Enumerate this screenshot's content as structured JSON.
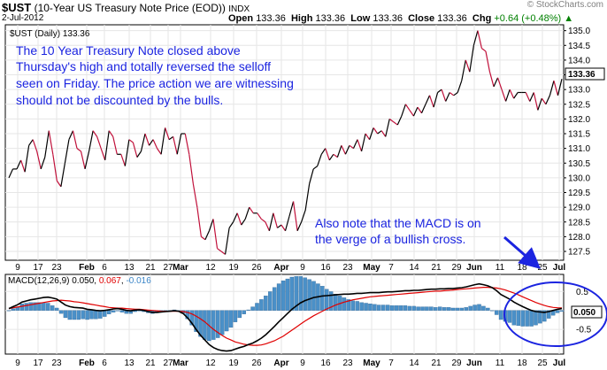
{
  "header": {
    "symbol": "$UST",
    "name": "(10-Year US Treasury Note Price (EOD))",
    "exchange": "INDX",
    "date": "2-Jul-2012",
    "open_label": "Open",
    "open": "133.36",
    "high_label": "High",
    "high": "133.36",
    "low_label": "Low",
    "low": "133.36",
    "close_label": "Close",
    "close": "133.36",
    "chg_label": "Chg",
    "chg": "+0.64 (+0.48%)",
    "chg_arrow": "up-arrow-icon",
    "watermark": "© StockCharts.com"
  },
  "price_panel": {
    "legend": "$UST (Daily) 133.36",
    "last_value": "133.36",
    "line_color_up": "#000000",
    "line_color_down": "#c0103a"
  },
  "macd_panel": {
    "legend_prefix": "MACD(12,26,9)",
    "macd_value": "0.050",
    "signal_value": "0.067",
    "hist_value": "-0.016",
    "last_value": "0.050",
    "macd_color": "#000000",
    "signal_color": "#e00000",
    "hist_color": "#4a90c8"
  },
  "annotations": {
    "main_lines": [
      "The 10 Year Treasury Note closed above",
      "Thursday's high and totally reversed the selloff",
      "seen on Friday. The price action we are witnessing",
      "should not be discounted by the bulls."
    ],
    "macd_lines": [
      "Also note that the MACD is on",
      "the verge of a bullish cross."
    ],
    "color": "#1b24e0",
    "arrow_icon": "arrow-down-right-icon",
    "circle_icon": "ellipse-highlight"
  },
  "chart_data": [
    {
      "type": "line",
      "title": "$UST (Daily) 133.36",
      "x_tick_labels": [
        "9",
        "17",
        "23",
        "Feb",
        "6",
        "13",
        "21",
        "27",
        "Mar",
        "12",
        "19",
        "26",
        "Apr",
        "9",
        "16",
        "23",
        "May",
        "7",
        "14",
        "21",
        "29",
        "Jun",
        "11",
        "18",
        "25",
        "Jul"
      ],
      "y_tick_labels": [
        "127.5",
        "128.0",
        "128.5",
        "129.0",
        "129.5",
        "130.0",
        "130.5",
        "131.0",
        "131.5",
        "132.0",
        "132.5",
        "133.0",
        "133.5",
        "134.0",
        "134.5",
        "135.0"
      ],
      "ylim": [
        127.2,
        135.2
      ],
      "grid": true,
      "series": [
        {
          "values": [
            130.0,
            130.3,
            130.3,
            130.6,
            130.2,
            131.1,
            131.3,
            130.9,
            130.3,
            130.7,
            131.6,
            130.8,
            129.9,
            129.7,
            130.5,
            131.3,
            131.6,
            131.0,
            130.9,
            130.3,
            130.9,
            131.6,
            131.4,
            131.0,
            130.6,
            131.6,
            131.4,
            130.8,
            130.8,
            130.4,
            131.3,
            131.2,
            130.7,
            130.9,
            131.5,
            131.1,
            131.3,
            131.0,
            130.8,
            131.7,
            131.3,
            131.4,
            130.8,
            131.5,
            131.5,
            130.8,
            129.8,
            129.0,
            128.0,
            127.9,
            128.2,
            128.6,
            127.6,
            127.5,
            127.4,
            128.3,
            128.5,
            128.8,
            128.4,
            128.6,
            129.0,
            128.8,
            128.8,
            128.6,
            128.5,
            128.2,
            128.8,
            128.3,
            128.4,
            128.2,
            128.7,
            129.2,
            128.2,
            128.5,
            128.9,
            129.8,
            130.3,
            130.4,
            130.8,
            131.0,
            130.6,
            130.8,
            130.7,
            131.1,
            130.8,
            131.1,
            131.0,
            131.3,
            130.9,
            131.5,
            131.3,
            131.7,
            131.5,
            131.6,
            131.4,
            132.0,
            131.9,
            131.8,
            132.1,
            132.5,
            132.3,
            132.1,
            132.4,
            132.2,
            132.5,
            132.8,
            132.4,
            132.9,
            133.0,
            132.6,
            132.9,
            132.8,
            132.9,
            133.3,
            134.0,
            133.6,
            134.5,
            135.0,
            134.4,
            134.3,
            133.6,
            133.1,
            133.4,
            133.0,
            132.6,
            133.0,
            132.7,
            132.9,
            132.9,
            132.9,
            132.6,
            132.9,
            132.3,
            132.7,
            132.5,
            132.8,
            133.3,
            132.8,
            133.36
          ]
        }
      ]
    },
    {
      "type": "line",
      "title": "MACD(12,26,9) 0.050, 0.067, -0.016",
      "y_tick_labels": [
        "0.5",
        "-0.5"
      ],
      "ylim": [
        -1.15,
        0.95
      ],
      "grid": true,
      "series": [
        {
          "name": "MACD",
          "values": [
            0.05,
            0.1,
            0.15,
            0.22,
            0.25,
            0.28,
            0.3,
            0.32,
            0.34,
            0.35,
            0.33,
            0.3,
            0.22,
            0.14,
            0.1,
            0.08,
            0.07,
            0.06,
            0.03,
            0.02,
            0.0,
            -0.01,
            0.0,
            0.02,
            0.04,
            0.05,
            0.03,
            0.0,
            -0.01,
            0.01,
            0.02,
            0.0,
            -0.03,
            -0.05,
            -0.05,
            -0.04,
            -0.03,
            -0.02,
            -0.01,
            -0.02,
            -0.08,
            -0.19,
            -0.33,
            -0.5,
            -0.65,
            -0.78,
            -0.9,
            -0.98,
            -1.03,
            -1.06,
            -1.07,
            -1.06,
            -1.02,
            -0.98,
            -0.95,
            -0.9,
            -0.86,
            -0.8,
            -0.73,
            -0.64,
            -0.53,
            -0.42,
            -0.3,
            -0.19,
            -0.08,
            0.03,
            0.12,
            0.2,
            0.26,
            0.3,
            0.34,
            0.36,
            0.38,
            0.39,
            0.4,
            0.41,
            0.42,
            0.43,
            0.43,
            0.44,
            0.45,
            0.45,
            0.46,
            0.47,
            0.47,
            0.47,
            0.48,
            0.49,
            0.49,
            0.5,
            0.51,
            0.52,
            0.52,
            0.53,
            0.53,
            0.54,
            0.55,
            0.56,
            0.56,
            0.57,
            0.57,
            0.58,
            0.58,
            0.59,
            0.6,
            0.62,
            0.65,
            0.68,
            0.7,
            0.68,
            0.65,
            0.6,
            0.52,
            0.42,
            0.36,
            0.3,
            0.22,
            0.16,
            0.1,
            0.05,
            0.0,
            -0.03,
            -0.04,
            -0.05,
            -0.03,
            0.0,
            0.03,
            0.05
          ]
        },
        {
          "name": "Signal",
          "values": [
            0.05,
            0.07,
            0.09,
            0.11,
            0.13,
            0.15,
            0.17,
            0.19,
            0.21,
            0.23,
            0.25,
            0.26,
            0.27,
            0.26,
            0.25,
            0.23,
            0.22,
            0.2,
            0.18,
            0.16,
            0.14,
            0.12,
            0.1,
            0.08,
            0.07,
            0.06,
            0.06,
            0.05,
            0.04,
            0.03,
            0.03,
            0.02,
            0.01,
            0.0,
            -0.01,
            -0.02,
            -0.02,
            -0.02,
            -0.02,
            -0.02,
            -0.03,
            -0.05,
            -0.09,
            -0.15,
            -0.22,
            -0.3,
            -0.4,
            -0.5,
            -0.58,
            -0.66,
            -0.73,
            -0.78,
            -0.83,
            -0.86,
            -0.89,
            -0.91,
            -0.92,
            -0.92,
            -0.91,
            -0.88,
            -0.84,
            -0.8,
            -0.74,
            -0.68,
            -0.6,
            -0.52,
            -0.44,
            -0.36,
            -0.28,
            -0.21,
            -0.14,
            -0.08,
            -0.02,
            0.04,
            0.09,
            0.14,
            0.18,
            0.22,
            0.25,
            0.28,
            0.3,
            0.32,
            0.34,
            0.36,
            0.37,
            0.38,
            0.39,
            0.4,
            0.41,
            0.42,
            0.43,
            0.44,
            0.45,
            0.46,
            0.47,
            0.48,
            0.49,
            0.5,
            0.51,
            0.51,
            0.52,
            0.53,
            0.54,
            0.55,
            0.56,
            0.57,
            0.58,
            0.59,
            0.6,
            0.61,
            0.61,
            0.6,
            0.59,
            0.57,
            0.54,
            0.5,
            0.46,
            0.41,
            0.36,
            0.31,
            0.26,
            0.21,
            0.17,
            0.13,
            0.1,
            0.08,
            0.07,
            0.067
          ]
        },
        {
          "name": "Histogram",
          "values": []
        }
      ]
    }
  ]
}
